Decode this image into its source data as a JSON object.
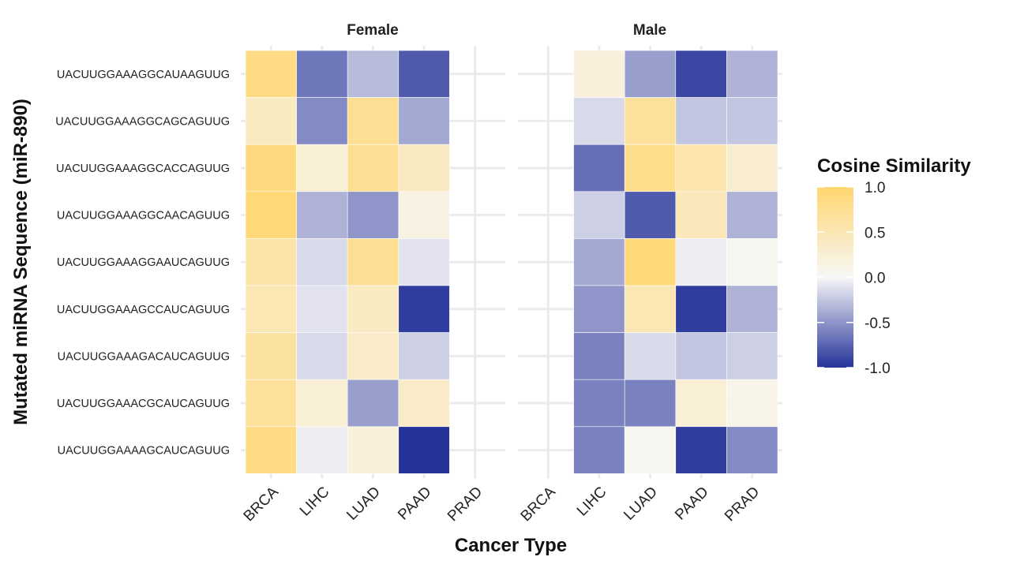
{
  "chart_data": {
    "type": "heatmap",
    "xlabel": "Cancer Type",
    "ylabel": "Mutated miRNA Sequence (miR-890)",
    "categories": [
      "BRCA",
      "LIHC",
      "LUAD",
      "PAAD",
      "PRAD"
    ],
    "rows": [
      "UACUUGGAAAGGCAUAAGUUG",
      "UACUUGGAAAGGCAGCAGUUG",
      "UACUUGGAAAGGCACCAGUUG",
      "UACUUGGAAAGGCAACAGUUG",
      "UACUUGGAAAGGAAUCAGUUG",
      "UACUUGGAAAGCCAUCAGUUG",
      "UACUUGGAAAGACAUCAGUUG",
      "UACUUGGAAACGCAUCAGUUG",
      "UACUUGGAAAAGCAUCAGUUG"
    ],
    "panels": [
      {
        "title": "Female",
        "values": [
          [
            0.85,
            -0.65,
            -0.3,
            -0.8,
            null
          ],
          [
            0.4,
            -0.55,
            0.75,
            -0.4,
            null
          ],
          [
            0.9,
            0.25,
            0.75,
            0.4,
            null
          ],
          [
            0.95,
            -0.35,
            -0.5,
            0.15,
            null
          ],
          [
            0.6,
            -0.15,
            0.75,
            -0.1,
            null
          ],
          [
            0.5,
            -0.1,
            0.4,
            -0.95,
            null
          ],
          [
            0.65,
            -0.15,
            0.35,
            -0.2,
            null
          ],
          [
            0.7,
            0.25,
            -0.45,
            0.35,
            null
          ],
          [
            0.85,
            -0.05,
            0.2,
            -1.0,
            null
          ]
        ]
      },
      {
        "title": "Male",
        "values": [
          [
            null,
            0.2,
            -0.45,
            -0.9,
            -0.35
          ],
          [
            null,
            -0.15,
            0.7,
            -0.25,
            -0.25
          ],
          [
            null,
            -0.7,
            0.8,
            0.55,
            0.3
          ],
          [
            null,
            -0.2,
            -0.8,
            0.45,
            -0.35
          ],
          [
            null,
            -0.4,
            0.95,
            -0.05,
            0.05
          ],
          [
            null,
            -0.5,
            0.5,
            -0.95,
            -0.35
          ],
          [
            null,
            -0.6,
            -0.15,
            -0.25,
            -0.2
          ],
          [
            null,
            -0.6,
            -0.6,
            0.25,
            0.1
          ],
          [
            null,
            -0.6,
            0.05,
            -0.95,
            -0.55
          ]
        ]
      }
    ],
    "legend": {
      "title": "Cosine Similarity",
      "position": "right",
      "ticks": [
        "1.0",
        "0.5",
        "0.0",
        "-0.5",
        "-1.0"
      ],
      "tick_values": [
        1.0,
        0.5,
        0.0,
        -0.5,
        -1.0
      ],
      "range": [
        -1,
        1
      ],
      "colors": {
        "low": "#26339a",
        "mid": "#f7f7f7",
        "high": "#ffd670"
      }
    },
    "grid": true
  }
}
